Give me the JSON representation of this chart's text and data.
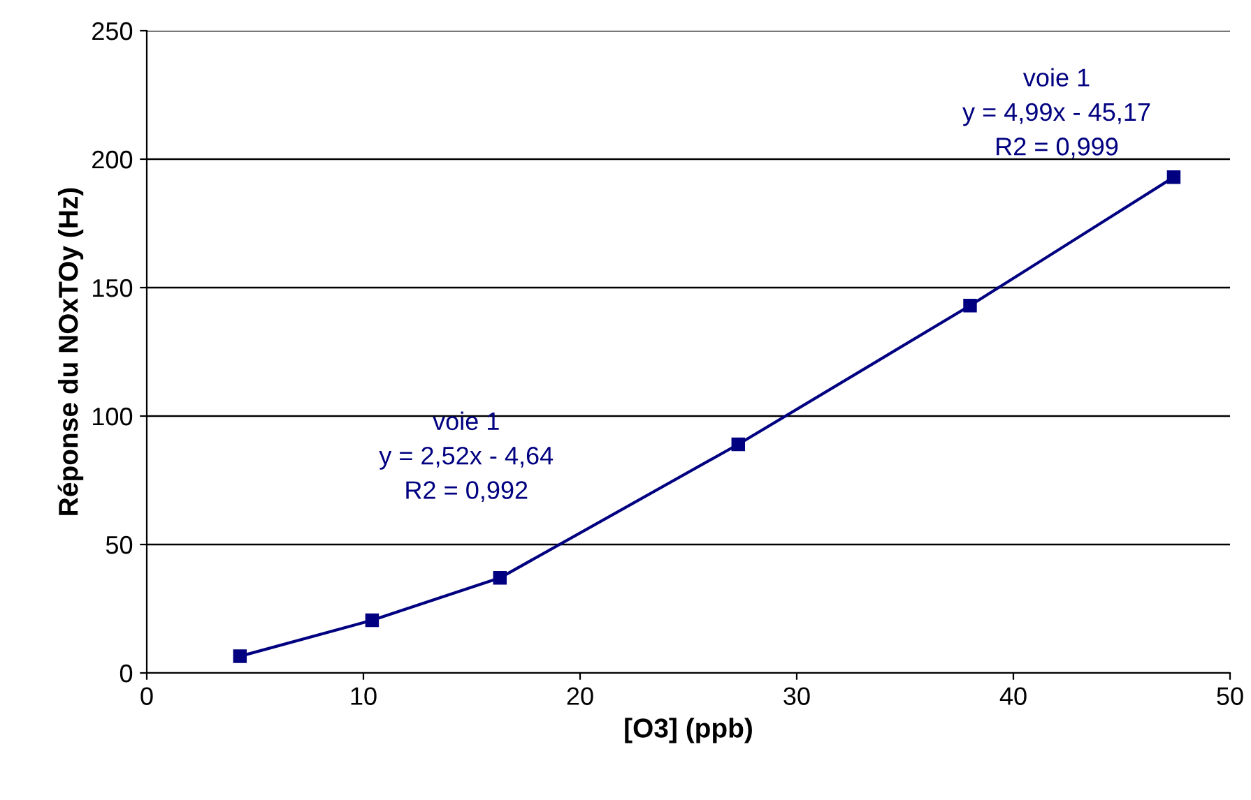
{
  "chart_data": {
    "type": "line",
    "xlabel": "[O3] (ppb)",
    "ylabel": "Réponse du NOxTOy (Hz)",
    "x": [
      4.3,
      10.4,
      16.3,
      27.3,
      38.0,
      47.4
    ],
    "series": [
      {
        "color": "#000080",
        "values": [
          6.5,
          20.5,
          37,
          89,
          143,
          193
        ]
      }
    ],
    "xlim": [
      0,
      50
    ],
    "xticks": [
      0,
      10,
      20,
      30,
      40,
      50
    ],
    "ylim": [
      0,
      250
    ],
    "yticks": [
      0,
      50,
      100,
      150,
      200,
      250
    ],
    "grid": "y",
    "marker": "square",
    "line_style": "solid",
    "annotations": [
      "voie 1\ny = 2,52x - 4,64\nR2 = 0,992",
      "voie 1\ny = 4,99x - 45,17\nR2 = 0,999"
    ]
  }
}
